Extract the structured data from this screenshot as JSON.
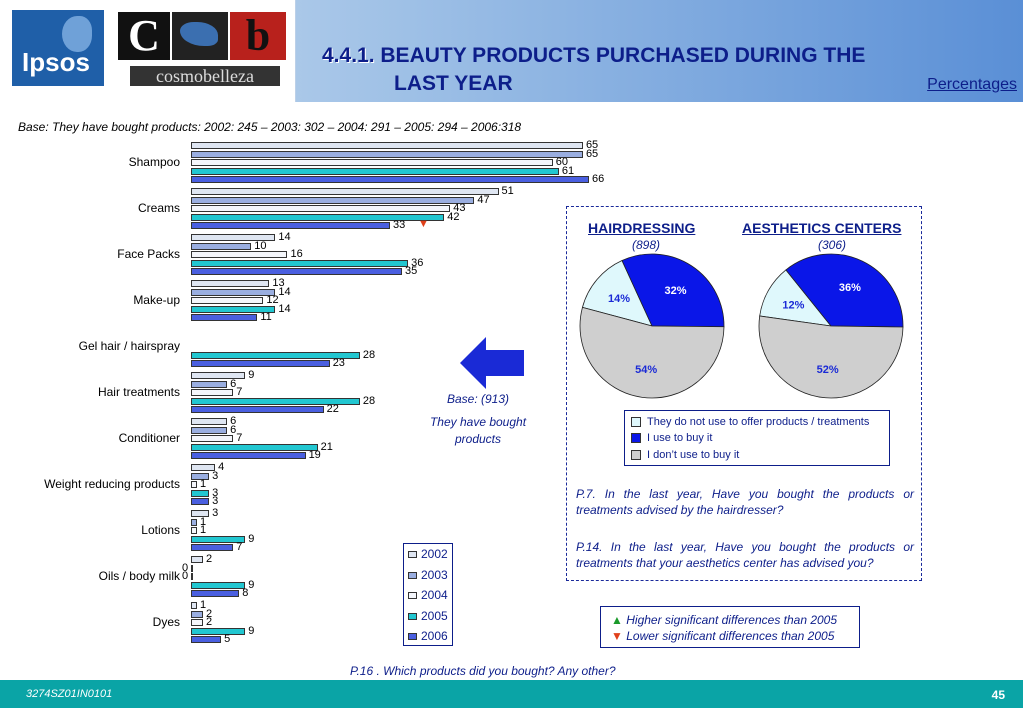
{
  "header": {
    "title_number": "4.4.1.",
    "title_line1": "BEAUTY PRODUCTS PURCHASED DURING THE",
    "title_line2": "LAST YEAR",
    "percentages_link": "Percentages",
    "logo_ipsos": "Ipsos",
    "logo_c": "C",
    "logo_b": "b",
    "logo_cosmo": "cosmobelleza"
  },
  "base_line": "Base: They have bought products:   2002: 245 – 2003: 302 – 2004: 291 – 2005: 294 – 2006:318",
  "colors": {
    "y2002": "#dfe6f2",
    "y2003": "#9aaee0",
    "y2004": "#f4f6fb",
    "y2005": "#22c7d1",
    "y2006": "#4a5fe0",
    "pie_not_offer": "#dff8fc",
    "pie_use": "#0a16e8",
    "pie_dont_use": "#cfcfcf"
  },
  "chart_data": [
    {
      "type": "bar",
      "orientation": "horizontal",
      "categories": [
        "Shampoo",
        "Creams",
        "Face Packs",
        "Make-up",
        "Gel hair / hairspray",
        "Hair treatments",
        "Conditioner",
        "Weight reducing products",
        "Lotions",
        "Oils / body milk",
        "Dyes"
      ],
      "series": [
        {
          "name": "2002",
          "values": [
            65,
            51,
            14,
            13,
            null,
            9,
            6,
            4,
            3,
            2,
            1
          ]
        },
        {
          "name": "2003",
          "values": [
            65,
            47,
            10,
            14,
            null,
            6,
            6,
            3,
            1,
            0,
            2
          ]
        },
        {
          "name": "2004",
          "values": [
            60,
            43,
            16,
            12,
            null,
            7,
            7,
            1,
            1,
            0,
            2
          ]
        },
        {
          "name": "2005",
          "values": [
            61,
            42,
            36,
            14,
            28,
            28,
            21,
            3,
            9,
            9,
            9
          ]
        },
        {
          "name": "2006",
          "values": [
            66,
            33,
            35,
            11,
            23,
            22,
            19,
            3,
            7,
            8,
            5
          ]
        }
      ],
      "markers": [
        {
          "category": "Creams",
          "type": "down"
        }
      ]
    },
    {
      "type": "pie",
      "title": "HAIRDRESSING",
      "n": "(898)",
      "slices": [
        {
          "name": "They do not use to offer products / treatments",
          "value": 14
        },
        {
          "name": "I use to buy it",
          "value": 32
        },
        {
          "name": "I don't use to buy it",
          "value": 54
        }
      ]
    },
    {
      "type": "pie",
      "title": "AESTHETICS CENTERS",
      "n": "(306)",
      "slices": [
        {
          "name": "They do not use to offer products / treatments",
          "value": 12
        },
        {
          "name": "I use to buy it",
          "value": 36
        },
        {
          "name": "I don't use to buy it",
          "value": 52
        }
      ]
    }
  ],
  "pie_legend": [
    "They do not use to offer products / treatments",
    "I use to buy it",
    "I don’t use to buy it"
  ],
  "year_legend": [
    "2002",
    "2003",
    "2004",
    "2005",
    "2006"
  ],
  "base913": "Base: (913)",
  "they_have_bought": "They have bought products",
  "q_p7": "P.7. In the last year, Have you bought the products or treatments advised by the hairdresser?",
  "q_p14": "P.14. In the last year, Have you bought the products or treatments that your aesthetics center has advised you?",
  "sig_higher": "Higher significant differences than 2005",
  "sig_lower": "Lower significant differences than 2005",
  "p16": "P.16 .  Which products did you bought? Any other?",
  "footer": {
    "code": "3274SZ01IN0101",
    "page": "45"
  }
}
